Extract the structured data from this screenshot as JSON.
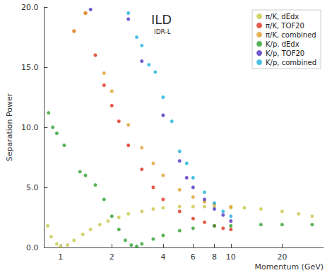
{
  "chart_data": {
    "type": "scatter",
    "annotations": [
      "ILD",
      "IDR-L"
    ],
    "x_label": "Momentum (GeV)",
    "y_label": "Separation Power",
    "log": "x",
    "grid": false,
    "legend": "top-right",
    "marker": "circle",
    "xlim": [
      0.8,
      35
    ],
    "xticks": [
      1,
      2,
      4,
      6,
      8,
      10,
      20
    ],
    "ylim": [
      0,
      20
    ],
    "yticks": [
      {
        "value": 0,
        "label": "0.0"
      },
      {
        "value": 5,
        "label": "5.0"
      },
      {
        "value": 10,
        "label": "10.0"
      },
      {
        "value": 15,
        "label": "15.0"
      },
      {
        "value": 20,
        "label": "20.0"
      }
    ],
    "series": [
      {
        "name": "π/K, dEdx",
        "color": "#c8c84a",
        "x": [
          0.84,
          0.88,
          0.95,
          1.0,
          1.1,
          1.2,
          1.35,
          1.5,
          1.7,
          1.9,
          2.2,
          2.5,
          3,
          3.5,
          4,
          5,
          6,
          7,
          8,
          10,
          12,
          15,
          20,
          25,
          30
        ],
        "values": [
          1.8,
          0.9,
          0.3,
          0.1,
          0.2,
          0.6,
          1.1,
          1.5,
          1.9,
          2.2,
          2.5,
          2.8,
          3.0,
          3.2,
          3.3,
          3.4,
          3.4,
          3.4,
          3.4,
          3.3,
          3.3,
          3.2,
          3.0,
          2.8,
          2.6
        ]
      },
      {
        "name": "π/K, TOF20",
        "color": "#e0301e",
        "x": [
          1.2,
          1.4,
          1.6,
          1.8,
          2,
          2.2,
          2.5,
          3,
          3.5,
          4,
          5,
          6,
          7,
          8,
          9,
          10
        ],
        "values": [
          18.0,
          19.5,
          16.0,
          13.5,
          11.8,
          10.5,
          8.5,
          6.5,
          5.0,
          4.0,
          3.0,
          2.4,
          2.1,
          1.8,
          1.6,
          1.5
        ]
      },
      {
        "name": "π/K, combined",
        "color": "#e0a030",
        "x": [
          1.2,
          1.4,
          1.8,
          2,
          2.5,
          3,
          3.5,
          4,
          5,
          6,
          7,
          8,
          10
        ],
        "values": [
          18.0,
          19.5,
          14.5,
          13.0,
          10.2,
          8.3,
          7.0,
          6.0,
          4.8,
          4.2,
          3.8,
          3.6,
          3.4
        ]
      },
      {
        "name": "K/p, dEdx",
        "color": "#2ea02e",
        "x": [
          0.85,
          0.9,
          0.95,
          1.05,
          1.3,
          1.4,
          1.6,
          1.8,
          2.0,
          2.2,
          2.4,
          2.6,
          2.8,
          3.0,
          3.5,
          4,
          5,
          6,
          8,
          10,
          15,
          20,
          30
        ],
        "values": [
          11.2,
          10.0,
          9.5,
          8.5,
          6.3,
          6.0,
          5.2,
          4.0,
          2.6,
          1.5,
          0.6,
          0.2,
          0.1,
          0.3,
          0.7,
          1.0,
          1.4,
          1.6,
          1.8,
          1.8,
          1.9,
          1.9,
          1.9
        ]
      },
      {
        "name": "K/p, TOF20",
        "color": "#5030c0",
        "x": [
          1.5,
          2.5,
          3,
          4,
          5,
          5.5,
          6,
          7,
          8,
          9,
          10
        ],
        "values": [
          19.8,
          19.0,
          15.5,
          11.0,
          7.2,
          5.8,
          5.0,
          4.0,
          3.2,
          2.7,
          2.2
        ]
      },
      {
        "name": "K/p, combined",
        "color": "#20b0e0",
        "x": [
          2.5,
          2.8,
          3,
          3.3,
          3.6,
          4,
          4.5,
          5,
          5.5,
          6,
          7,
          8,
          9,
          10
        ],
        "values": [
          19.5,
          17.5,
          16.8,
          15.2,
          14.6,
          12.5,
          10.5,
          8.0,
          7.0,
          5.8,
          4.6,
          3.7,
          3.0,
          2.6
        ]
      }
    ]
  }
}
